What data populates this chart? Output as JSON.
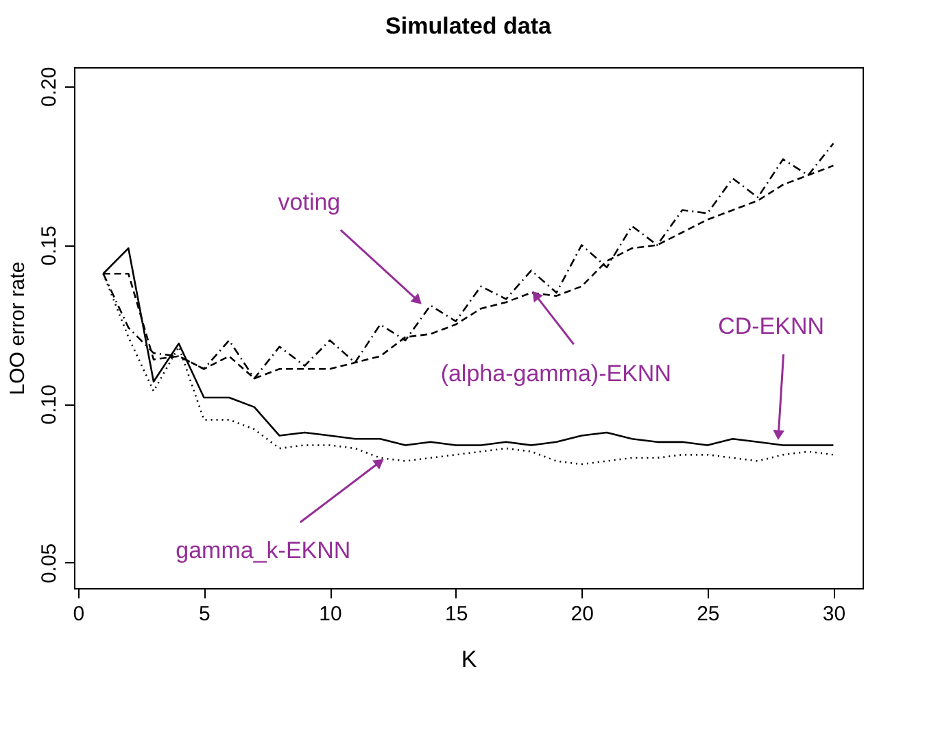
{
  "chart_data": {
    "type": "line",
    "title": "Simulated data",
    "xlabel": "K",
    "ylabel": "LOO error rate",
    "x": [
      1,
      2,
      3,
      4,
      5,
      6,
      7,
      8,
      9,
      10,
      11,
      12,
      13,
      14,
      15,
      16,
      17,
      18,
      19,
      20,
      21,
      22,
      23,
      24,
      25,
      26,
      27,
      28,
      29,
      30
    ],
    "series": [
      {
        "color": "#000000",
        "line_style": "solid",
        "values": [
          0.141,
          0.149,
          0.107,
          0.119,
          0.102,
          0.102,
          0.099,
          0.09,
          0.091,
          0.09,
          0.089,
          0.089,
          0.087,
          0.088,
          0.087,
          0.087,
          0.088,
          0.087,
          0.088,
          0.09,
          0.091,
          0.089,
          0.088,
          0.088,
          0.087,
          0.089,
          0.088,
          0.087,
          0.087,
          0.087
        ]
      },
      {
        "color": "#000000",
        "line_style": "dotted",
        "values": [
          0.141,
          0.121,
          0.104,
          0.118,
          0.095,
          0.095,
          0.092,
          0.086,
          0.087,
          0.087,
          0.086,
          0.083,
          0.082,
          0.083,
          0.084,
          0.085,
          0.086,
          0.085,
          0.082,
          0.081,
          0.082,
          0.083,
          0.083,
          0.084,
          0.084,
          0.083,
          0.082,
          0.084,
          0.085,
          0.084
        ]
      },
      {
        "color": "#000000",
        "line_style": "dashed",
        "values": [
          0.141,
          0.141,
          0.114,
          0.115,
          0.111,
          0.115,
          0.108,
          0.111,
          0.111,
          0.111,
          0.113,
          0.115,
          0.121,
          0.122,
          0.125,
          0.13,
          0.132,
          0.135,
          0.134,
          0.137,
          0.145,
          0.149,
          0.15,
          0.154,
          0.158,
          0.161,
          0.164,
          0.169,
          0.172,
          0.175
        ]
      },
      {
        "color": "#000000",
        "line_style": "dashdot",
        "values": [
          0.141,
          0.124,
          0.116,
          0.115,
          0.111,
          0.12,
          0.108,
          0.118,
          0.112,
          0.12,
          0.113,
          0.125,
          0.12,
          0.131,
          0.126,
          0.137,
          0.133,
          0.142,
          0.135,
          0.15,
          0.143,
          0.156,
          0.15,
          0.161,
          0.16,
          0.171,
          0.165,
          0.177,
          0.172,
          0.182
        ]
      }
    ],
    "xlim": [
      -0.16,
      31.16
    ],
    "xticks": [
      0,
      5,
      10,
      15,
      20,
      25,
      30
    ],
    "ylim": [
      0.042,
      0.206
    ],
    "yticks": [
      {
        "value": 0.05,
        "label": "0.05"
      },
      {
        "value": 0.1,
        "label": "0.10"
      },
      {
        "value": 0.15,
        "label": "0.15"
      },
      {
        "value": 0.2,
        "label": "0.20"
      }
    ],
    "annotations": [
      {
        "text": "voting",
        "x": 13.7,
        "y": 0.131
      },
      {
        "text": "(alpha-gamma)-EKNN",
        "x": 18,
        "y": 0.136
      },
      {
        "text": "CD-EKNN",
        "x": 27.8,
        "y": 0.088
      },
      {
        "text": "gamma_k-EKNN",
        "x": 12.2,
        "y": 0.083
      }
    ],
    "grid": false,
    "marker": "none"
  }
}
